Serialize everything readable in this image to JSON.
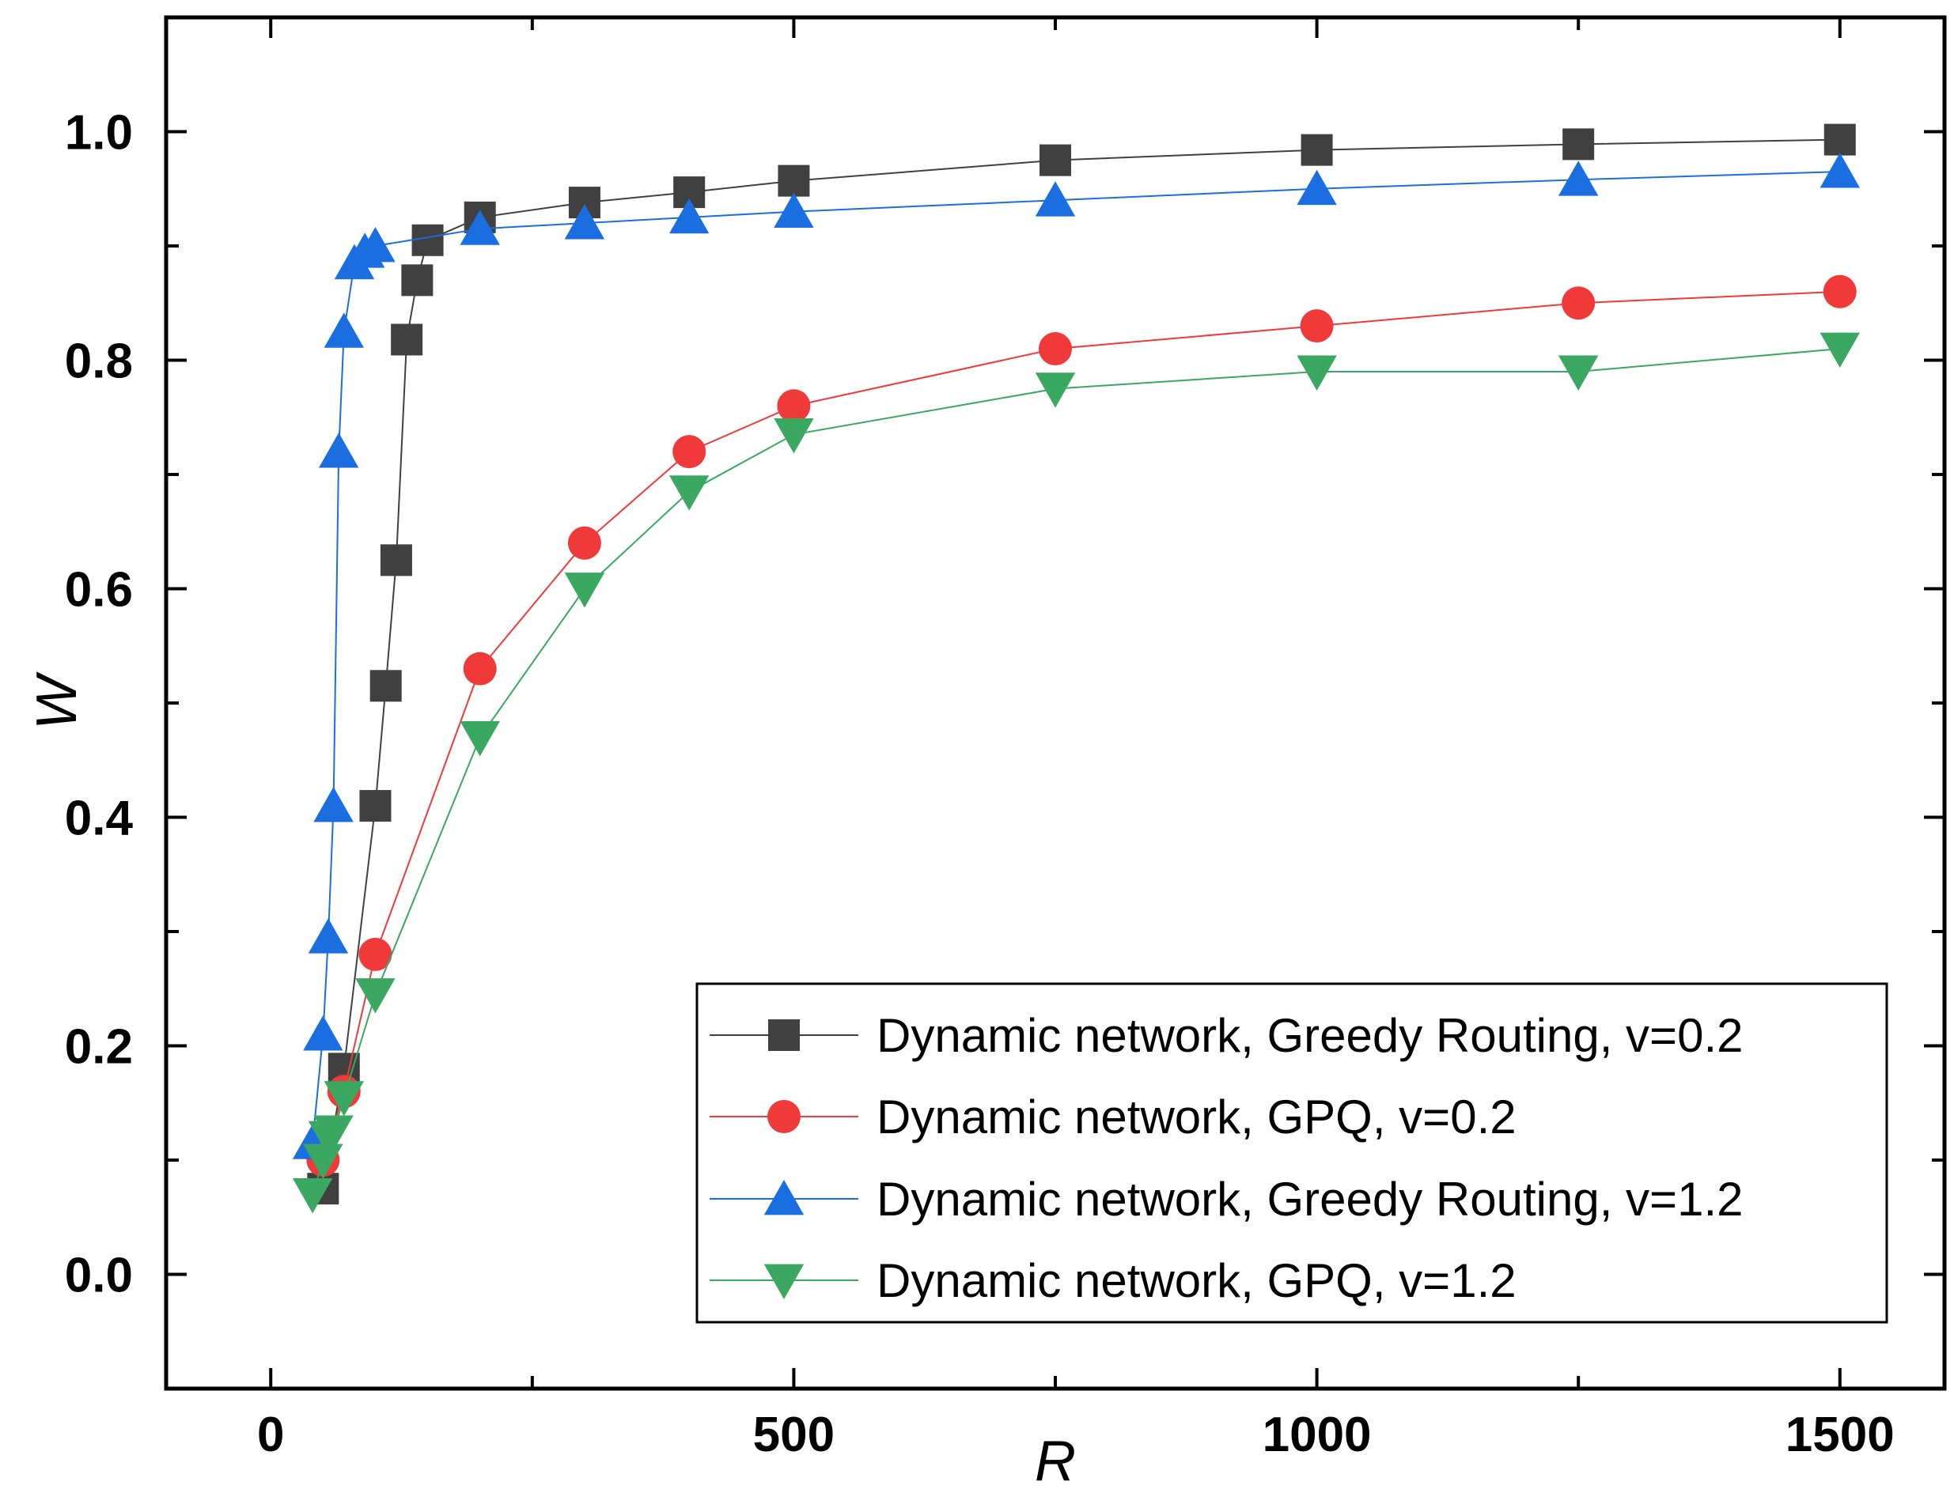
{
  "chart_data": {
    "type": "line",
    "xlabel": "R",
    "ylabel": "W",
    "xlim": [
      -100,
      1600
    ],
    "ylim": [
      -0.1,
      1.1
    ],
    "x_ticks": [
      0,
      500,
      1000,
      1500
    ],
    "x_tick_labels": [
      "0",
      "500",
      "1000",
      "1500"
    ],
    "y_ticks": [
      0.0,
      0.2,
      0.4,
      0.6,
      0.8,
      1.0
    ],
    "y_tick_labels": [
      "0.0",
      "0.2",
      "0.4",
      "0.6",
      "0.8",
      "1.0"
    ],
    "legend_position": "bottom-right",
    "grid": false,
    "series": [
      {
        "name": "Dynamic network, Greedy Routing, v=0.2",
        "color": "#404040",
        "marker": "square",
        "x": [
          50,
          70,
          100,
          110,
          120,
          130,
          140,
          150,
          200,
          300,
          400,
          500,
          750,
          1000,
          1250,
          1500
        ],
        "y": [
          0.075,
          0.18,
          0.41,
          0.515,
          0.625,
          0.818,
          0.87,
          0.905,
          0.925,
          0.938,
          0.947,
          0.957,
          0.975,
          0.984,
          0.989,
          0.993
        ]
      },
      {
        "name": "Dynamic network, GPQ, v=0.2",
        "color": "#f03a3a",
        "marker": "circle",
        "x": [
          50,
          70,
          100,
          200,
          300,
          400,
          500,
          750,
          1000,
          1250,
          1500
        ],
        "y": [
          0.1,
          0.16,
          0.28,
          0.53,
          0.64,
          0.72,
          0.76,
          0.81,
          0.83,
          0.85,
          0.86
        ]
      },
      {
        "name": "Dynamic network, Greedy Routing, v=1.2",
        "color": "#1a6ee0",
        "marker": "triangle-up",
        "x": [
          40,
          50,
          55,
          60,
          65,
          70,
          80,
          90,
          100,
          200,
          300,
          400,
          500,
          750,
          1000,
          1250,
          1500
        ],
        "y": [
          0.115,
          0.21,
          0.295,
          0.41,
          0.72,
          0.825,
          0.885,
          0.895,
          0.9,
          0.915,
          0.92,
          0.925,
          0.93,
          0.94,
          0.95,
          0.958,
          0.965
        ]
      },
      {
        "name": "Dynamic network, GPQ, v=1.2",
        "color": "#3aa860",
        "marker": "triangle-down",
        "x": [
          40,
          50,
          55,
          60,
          70,
          100,
          200,
          300,
          400,
          500,
          750,
          1000,
          1250,
          1500
        ],
        "y": [
          0.07,
          0.1,
          0.12,
          0.125,
          0.155,
          0.245,
          0.47,
          0.6,
          0.685,
          0.735,
          0.775,
          0.79,
          0.79,
          0.81
        ]
      }
    ]
  }
}
